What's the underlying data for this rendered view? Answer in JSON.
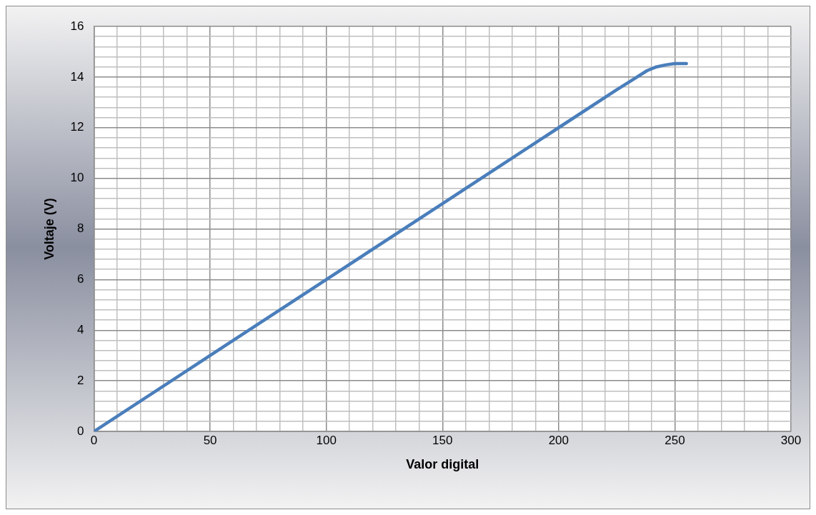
{
  "chart_data": {
    "type": "line",
    "xlabel": "Valor digital",
    "ylabel": "Voltaje (V)",
    "series": [
      {
        "color": "#4a7ebb",
        "x": [
          0,
          50,
          100,
          150,
          200,
          225,
          232,
          238,
          242,
          246,
          250,
          255
        ],
        "values": [
          0,
          3,
          6,
          9,
          12,
          13.5,
          13.9,
          14.25,
          14.4,
          14.48,
          14.53,
          14.53
        ]
      }
    ],
    "xlim": [
      0,
      300
    ],
    "xticks": [
      0,
      {
        "value": 10,
        "label": null
      },
      {
        "value": 20,
        "label": null
      },
      {
        "value": 30,
        "label": null
      },
      {
        "value": 40,
        "label": null
      },
      50,
      {
        "value": 60,
        "label": null
      },
      {
        "value": 70,
        "label": null
      },
      {
        "value": 80,
        "label": null
      },
      {
        "value": 90,
        "label": null
      },
      100,
      {
        "value": 110,
        "label": null
      },
      {
        "value": 120,
        "label": null
      },
      {
        "value": 130,
        "label": null
      },
      {
        "value": 140,
        "label": null
      },
      150,
      {
        "value": 160,
        "label": null
      },
      {
        "value": 170,
        "label": null
      },
      {
        "value": 180,
        "label": null
      },
      {
        "value": 190,
        "label": null
      },
      200,
      {
        "value": 210,
        "label": null
      },
      {
        "value": 220,
        "label": null
      },
      {
        "value": 230,
        "label": null
      },
      {
        "value": 240,
        "label": null
      },
      250,
      {
        "value": 260,
        "label": null
      },
      {
        "value": 270,
        "label": null
      },
      {
        "value": 280,
        "label": null
      },
      {
        "value": 290,
        "label": null
      },
      300
    ],
    "ylim": [
      0,
      16
    ],
    "yticks": [
      0,
      {
        "value": 0.4,
        "label": null
      },
      {
        "value": 0.8,
        "label": null
      },
      {
        "value": 1.2,
        "label": null
      },
      {
        "value": 1.6,
        "label": null
      },
      2,
      {
        "value": 2.4,
        "label": null
      },
      {
        "value": 2.8,
        "label": null
      },
      {
        "value": 3.2,
        "label": null
      },
      {
        "value": 3.6,
        "label": null
      },
      4,
      {
        "value": 4.4,
        "label": null
      },
      {
        "value": 4.8,
        "label": null
      },
      {
        "value": 5.2,
        "label": null
      },
      {
        "value": 5.6,
        "label": null
      },
      6,
      {
        "value": 6.4,
        "label": null
      },
      {
        "value": 6.8,
        "label": null
      },
      {
        "value": 7.2,
        "label": null
      },
      {
        "value": 7.6,
        "label": null
      },
      8,
      {
        "value": 8.4,
        "label": null
      },
      {
        "value": 8.8,
        "label": null
      },
      {
        "value": 9.2,
        "label": null
      },
      {
        "value": 9.6,
        "label": null
      },
      10,
      {
        "value": 10.4,
        "label": null
      },
      {
        "value": 10.8,
        "label": null
      },
      {
        "value": 11.2,
        "label": null
      },
      {
        "value": 11.6,
        "label": null
      },
      12,
      {
        "value": 12.4,
        "label": null
      },
      {
        "value": 12.8,
        "label": null
      },
      {
        "value": 13.2,
        "label": null
      },
      {
        "value": 13.6,
        "label": null
      },
      14,
      {
        "value": 14.4,
        "label": null
      },
      {
        "value": 14.8,
        "label": null
      },
      {
        "value": 15.2,
        "label": null
      },
      {
        "value": 15.6,
        "label": null
      },
      16
    ],
    "grid": true,
    "legend": false,
    "marker": "none",
    "line_style": "solid"
  }
}
